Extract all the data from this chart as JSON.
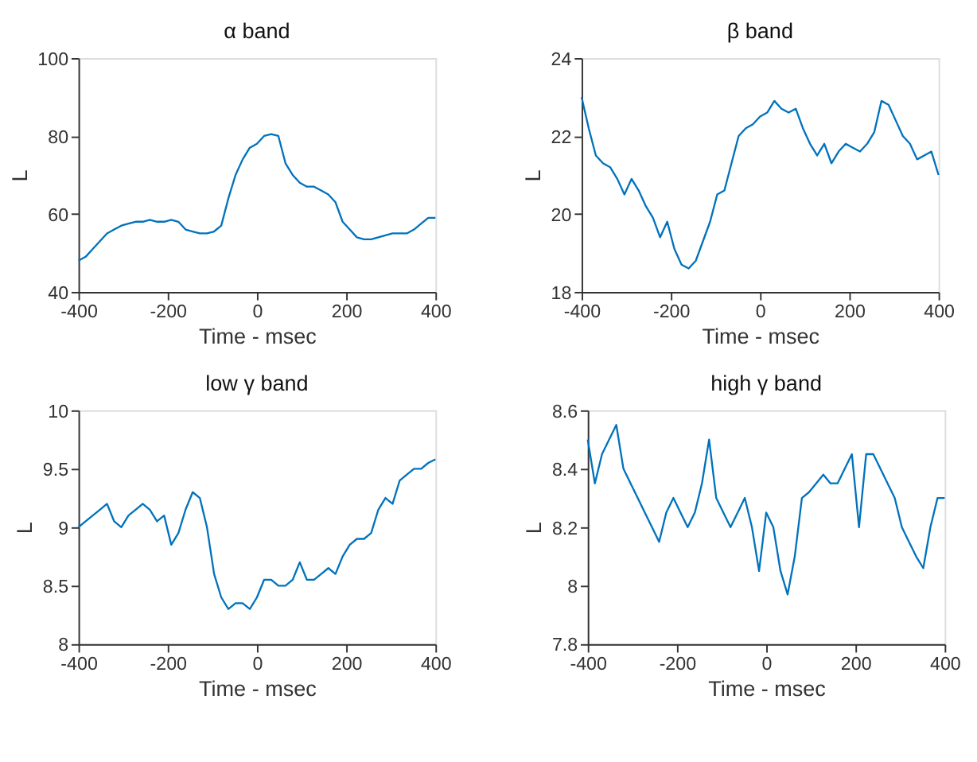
{
  "chart_data": [
    {
      "type": "line",
      "title": "α band",
      "xlabel": "Time - msec",
      "ylabel": "L",
      "xlim": [
        -400,
        400
      ],
      "ylim": [
        40,
        100
      ],
      "xticks": [
        -400,
        -200,
        0,
        200,
        400
      ],
      "yticks": [
        40,
        60,
        80,
        100
      ],
      "color": "#0072bd",
      "x": [
        -400,
        -384,
        -368,
        -352,
        -336,
        -320,
        -304,
        -288,
        -272,
        -256,
        -240,
        -224,
        -208,
        -192,
        -176,
        -160,
        -144,
        -128,
        -112,
        -96,
        -80,
        -64,
        -48,
        -32,
        -16,
        0,
        16,
        32,
        48,
        64,
        80,
        96,
        112,
        128,
        144,
        160,
        176,
        192,
        208,
        224,
        240,
        256,
        272,
        288,
        304,
        320,
        336,
        352,
        368,
        384,
        400
      ],
      "values": [
        48,
        49,
        51,
        53,
        55,
        56,
        57,
        57.5,
        58,
        58,
        58.5,
        58,
        58,
        58.5,
        58,
        56,
        55.5,
        55,
        55,
        55.5,
        57,
        64,
        70,
        74,
        77,
        78,
        80,
        80.5,
        80,
        73,
        70,
        68,
        67,
        67,
        66,
        65,
        63,
        58,
        56,
        54,
        53.5,
        53.5,
        54,
        54.5,
        55,
        55,
        55,
        56,
        57.5,
        59,
        59
      ]
    },
    {
      "type": "line",
      "title": "β band",
      "xlabel": "Time - msec",
      "ylabel": "L",
      "xlim": [
        -400,
        400
      ],
      "ylim": [
        18,
        24
      ],
      "xticks": [
        -400,
        -200,
        0,
        200,
        400
      ],
      "yticks": [
        18,
        20,
        22,
        24
      ],
      "color": "#0072bd",
      "x": [
        -400,
        -384,
        -368,
        -352,
        -336,
        -320,
        -304,
        -288,
        -272,
        -256,
        -240,
        -224,
        -208,
        -192,
        -176,
        -160,
        -144,
        -128,
        -112,
        -96,
        -80,
        -64,
        -48,
        -32,
        -16,
        0,
        16,
        32,
        48,
        64,
        80,
        96,
        112,
        128,
        144,
        160,
        176,
        192,
        208,
        224,
        240,
        256,
        272,
        288,
        304,
        320,
        336,
        352,
        368,
        384,
        400
      ],
      "values": [
        23,
        22.2,
        21.5,
        21.3,
        21.2,
        20.9,
        20.5,
        20.9,
        20.6,
        20.2,
        19.9,
        19.4,
        19.8,
        19.1,
        18.7,
        18.6,
        18.8,
        19.3,
        19.8,
        20.5,
        20.6,
        21.3,
        22,
        22.2,
        22.3,
        22.5,
        22.6,
        22.9,
        22.7,
        22.6,
        22.7,
        22.2,
        21.8,
        21.5,
        21.8,
        21.3,
        21.6,
        21.8,
        21.7,
        21.6,
        21.8,
        22.1,
        22.9,
        22.8,
        22.4,
        22,
        21.8,
        21.4,
        21.5,
        21.6,
        21
      ]
    },
    {
      "type": "line",
      "title": "low  γ band",
      "xlabel": "Time - msec",
      "ylabel": "L",
      "xlim": [
        -400,
        400
      ],
      "ylim": [
        8,
        10
      ],
      "xticks": [
        -400,
        -200,
        0,
        200,
        400
      ],
      "yticks": [
        8,
        8.5,
        9,
        9.5,
        10
      ],
      "color": "#0072bd",
      "x": [
        -400,
        -384,
        -368,
        -352,
        -336,
        -320,
        -304,
        -288,
        -272,
        -256,
        -240,
        -224,
        -208,
        -192,
        -176,
        -160,
        -144,
        -128,
        -112,
        -96,
        -80,
        -64,
        -48,
        -32,
        -16,
        0,
        16,
        32,
        48,
        64,
        80,
        96,
        112,
        128,
        144,
        160,
        176,
        192,
        208,
        224,
        240,
        256,
        272,
        288,
        304,
        320,
        336,
        352,
        368,
        384,
        400
      ],
      "values": [
        9,
        9.05,
        9.1,
        9.15,
        9.2,
        9.05,
        9,
        9.1,
        9.15,
        9.2,
        9.15,
        9.05,
        9.1,
        8.85,
        8.95,
        9.15,
        9.3,
        9.25,
        9,
        8.6,
        8.4,
        8.3,
        8.35,
        8.35,
        8.3,
        8.4,
        8.55,
        8.55,
        8.5,
        8.5,
        8.55,
        8.7,
        8.55,
        8.55,
        8.6,
        8.65,
        8.6,
        8.75,
        8.85,
        8.9,
        8.9,
        8.95,
        9.15,
        9.25,
        9.2,
        9.4,
        9.45,
        9.5,
        9.5,
        9.55,
        9.58
      ]
    },
    {
      "type": "line",
      "title": "high  γ band",
      "xlabel": "Time - msec",
      "ylabel": "L",
      "xlim": [
        -400,
        400
      ],
      "ylim": [
        7.8,
        8.6
      ],
      "xticks": [
        -400,
        -200,
        0,
        200,
        400
      ],
      "yticks": [
        7.8,
        8,
        8.2,
        8.4,
        8.6
      ],
      "color": "#0072bd",
      "x": [
        -400,
        -384,
        -368,
        -352,
        -336,
        -320,
        -304,
        -288,
        -272,
        -256,
        -240,
        -224,
        -208,
        -192,
        -176,
        -160,
        -144,
        -128,
        -112,
        -96,
        -80,
        -64,
        -48,
        -32,
        -16,
        0,
        16,
        32,
        48,
        64,
        80,
        96,
        112,
        128,
        144,
        160,
        176,
        192,
        208,
        224,
        240,
        256,
        272,
        288,
        304,
        320,
        336,
        352,
        368,
        384,
        400
      ],
      "values": [
        8.5,
        8.35,
        8.45,
        8.5,
        8.55,
        8.4,
        8.35,
        8.3,
        8.25,
        8.2,
        8.15,
        8.25,
        8.3,
        8.25,
        8.2,
        8.25,
        8.35,
        8.5,
        8.3,
        8.25,
        8.2,
        8.25,
        8.3,
        8.2,
        8.05,
        8.25,
        8.2,
        8.05,
        7.97,
        8.1,
        8.3,
        8.32,
        8.35,
        8.38,
        8.35,
        8.35,
        8.4,
        8.45,
        8.2,
        8.45,
        8.45,
        8.4,
        8.35,
        8.3,
        8.2,
        8.15,
        8.1,
        8.06,
        8.2,
        8.3,
        8.3
      ]
    }
  ]
}
